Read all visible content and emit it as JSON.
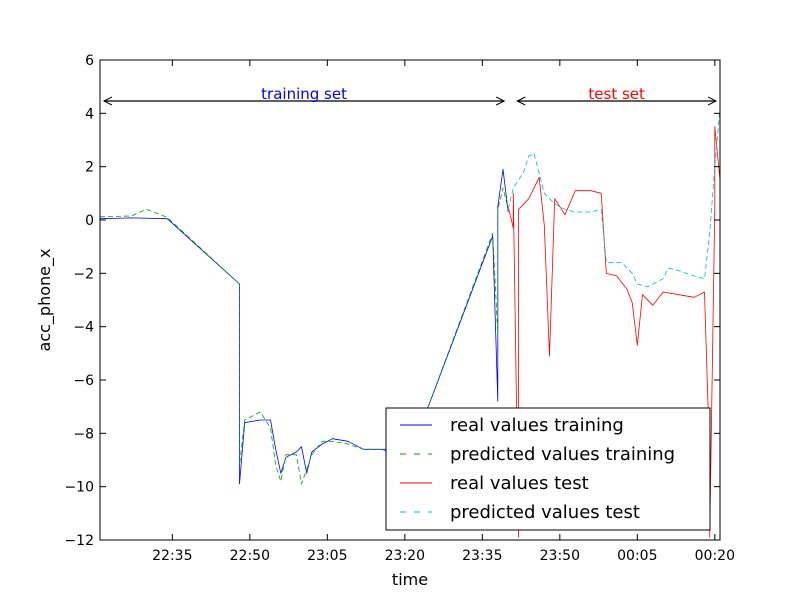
{
  "chart_data": {
    "type": "line",
    "xlabel": "time",
    "ylabel": "acc_phone_x",
    "xlim": [
      "22:21",
      "00:21"
    ],
    "ylim": [
      -12,
      6
    ],
    "x_ticks": [
      "22:35",
      "22:50",
      "23:05",
      "23:20",
      "23:35",
      "23:50",
      "00:05",
      "00:20"
    ],
    "y_ticks": [
      -12,
      -10,
      -8,
      -6,
      -4,
      -2,
      0,
      2,
      4,
      6
    ],
    "y_tick_labels": [
      "−12",
      "−10",
      "−8",
      "−6",
      "−4",
      "−2",
      "0",
      "2",
      "4",
      "6"
    ],
    "grid": false,
    "legend_position": "lower-right",
    "annotations": [
      {
        "text": "training set",
        "color": "#0000ff",
        "from": "22:21",
        "to": "23:40"
      },
      {
        "text": "test set",
        "color": "#ff0000",
        "from": "23:41",
        "to": "00:21"
      }
    ],
    "series": [
      {
        "name": "real values training",
        "color": "#0000ff",
        "style": "solid",
        "points": [
          [
            "22:21",
            0.05
          ],
          [
            "22:27",
            0.08
          ],
          [
            "22:34",
            0.05
          ],
          [
            "22:48",
            -2.4
          ],
          [
            "22:48",
            -9.9
          ],
          [
            "22:49",
            -7.6
          ],
          [
            "22:52",
            -7.5
          ],
          [
            "22:54",
            -7.5
          ],
          [
            "22:55",
            -8.6
          ],
          [
            "22:56",
            -9.5
          ],
          [
            "22:57",
            -8.9
          ],
          [
            "22:59",
            -8.7
          ],
          [
            "23:00",
            -8.5
          ],
          [
            "23:01",
            -9.5
          ],
          [
            "23:02",
            -8.7
          ],
          [
            "23:04",
            -8.4
          ],
          [
            "23:06",
            -8.2
          ],
          [
            "23:09",
            -8.3
          ],
          [
            "23:12",
            -8.6
          ],
          [
            "23:15",
            -8.6
          ],
          [
            "23:17",
            -8.6
          ],
          [
            "23:19",
            -8.3
          ],
          [
            "23:21",
            -8.2
          ],
          [
            "23:22",
            -8.3
          ],
          [
            "23:37",
            -0.6
          ],
          [
            "23:38",
            -6.8
          ],
          [
            "23:38",
            0.5
          ],
          [
            "23:39",
            1.9
          ],
          [
            "23:40",
            0.3
          ]
        ]
      },
      {
        "name": "predicted values training",
        "color": "#00a000",
        "style": "dashed",
        "points": [
          [
            "22:21",
            0.12
          ],
          [
            "22:27",
            0.15
          ],
          [
            "22:30",
            0.4
          ],
          [
            "22:34",
            0.1
          ],
          [
            "22:48",
            -2.4
          ],
          [
            "22:48",
            -9.2
          ],
          [
            "22:49",
            -7.5
          ],
          [
            "22:52",
            -7.2
          ],
          [
            "22:54",
            -7.8
          ],
          [
            "22:55",
            -9.2
          ],
          [
            "22:56",
            -9.8
          ],
          [
            "22:57",
            -8.8
          ],
          [
            "22:59",
            -8.8
          ],
          [
            "23:00",
            -9.9
          ],
          [
            "23:02",
            -8.8
          ],
          [
            "23:04",
            -8.3
          ],
          [
            "23:06",
            -8.3
          ],
          [
            "23:09",
            -8.4
          ],
          [
            "23:12",
            -8.6
          ],
          [
            "23:15",
            -8.6
          ],
          [
            "23:17",
            -8.7
          ],
          [
            "23:19",
            -7.8
          ],
          [
            "23:21",
            -8.2
          ],
          [
            "23:22",
            -8.3
          ],
          [
            "23:37",
            -0.5
          ],
          [
            "23:38",
            -4.3
          ],
          [
            "23:38",
            0.4
          ],
          [
            "23:39",
            1.2
          ],
          [
            "23:40",
            0.4
          ]
        ]
      },
      {
        "name": "real values test",
        "color": "#ff0000",
        "style": "solid",
        "points": [
          [
            "23:40",
            0.5
          ],
          [
            "23:41",
            -0.3
          ],
          [
            "23:41",
            1.0
          ],
          [
            "23:42",
            -11.9
          ],
          [
            "23:42",
            0.4
          ],
          [
            "23:44",
            0.8
          ],
          [
            "23:46",
            1.6
          ],
          [
            "23:47",
            -0.2
          ],
          [
            "23:48",
            -5.1
          ],
          [
            "23:49",
            0.8
          ],
          [
            "23:51",
            0.2
          ],
          [
            "23:53",
            1.1
          ],
          [
            "23:56",
            1.1
          ],
          [
            "23:58",
            1.0
          ],
          [
            "23:59",
            -2.0
          ],
          [
            "00:01",
            -2.1
          ],
          [
            "00:03",
            -2.6
          ],
          [
            "00:04",
            -3.1
          ],
          [
            "00:05",
            -4.7
          ],
          [
            "00:06",
            -2.8
          ],
          [
            "00:08",
            -3.2
          ],
          [
            "00:10",
            -2.7
          ],
          [
            "00:13",
            -2.8
          ],
          [
            "00:16",
            -2.9
          ],
          [
            "00:18",
            -2.7
          ],
          [
            "00:19",
            -9.0
          ],
          [
            "00:19",
            -11.9
          ],
          [
            "00:20",
            0.5
          ],
          [
            "00:20",
            3.5
          ],
          [
            "00:21",
            1.5
          ]
        ]
      },
      {
        "name": "predicted values test",
        "color": "#00bfbf",
        "style": "dashed",
        "points": [
          [
            "23:40",
            0.4
          ],
          [
            "23:41",
            1.2
          ],
          [
            "23:43",
            1.8
          ],
          [
            "23:44",
            2.4
          ],
          [
            "23:45",
            2.5
          ],
          [
            "23:47",
            1.0
          ],
          [
            "23:49",
            0.6
          ],
          [
            "23:51",
            0.4
          ],
          [
            "23:53",
            0.3
          ],
          [
            "23:56",
            0.3
          ],
          [
            "23:58",
            0.4
          ],
          [
            "23:59",
            -1.6
          ],
          [
            "00:02",
            -1.6
          ],
          [
            "00:04",
            -2.0
          ],
          [
            "00:05",
            -2.4
          ],
          [
            "00:07",
            -2.5
          ],
          [
            "00:10",
            -2.2
          ],
          [
            "00:11",
            -1.8
          ],
          [
            "00:13",
            -1.9
          ],
          [
            "00:16",
            -2.1
          ],
          [
            "00:18",
            -2.2
          ],
          [
            "00:19",
            -0.5
          ],
          [
            "00:20",
            2.0
          ],
          [
            "00:21",
            4.2
          ]
        ]
      }
    ]
  }
}
